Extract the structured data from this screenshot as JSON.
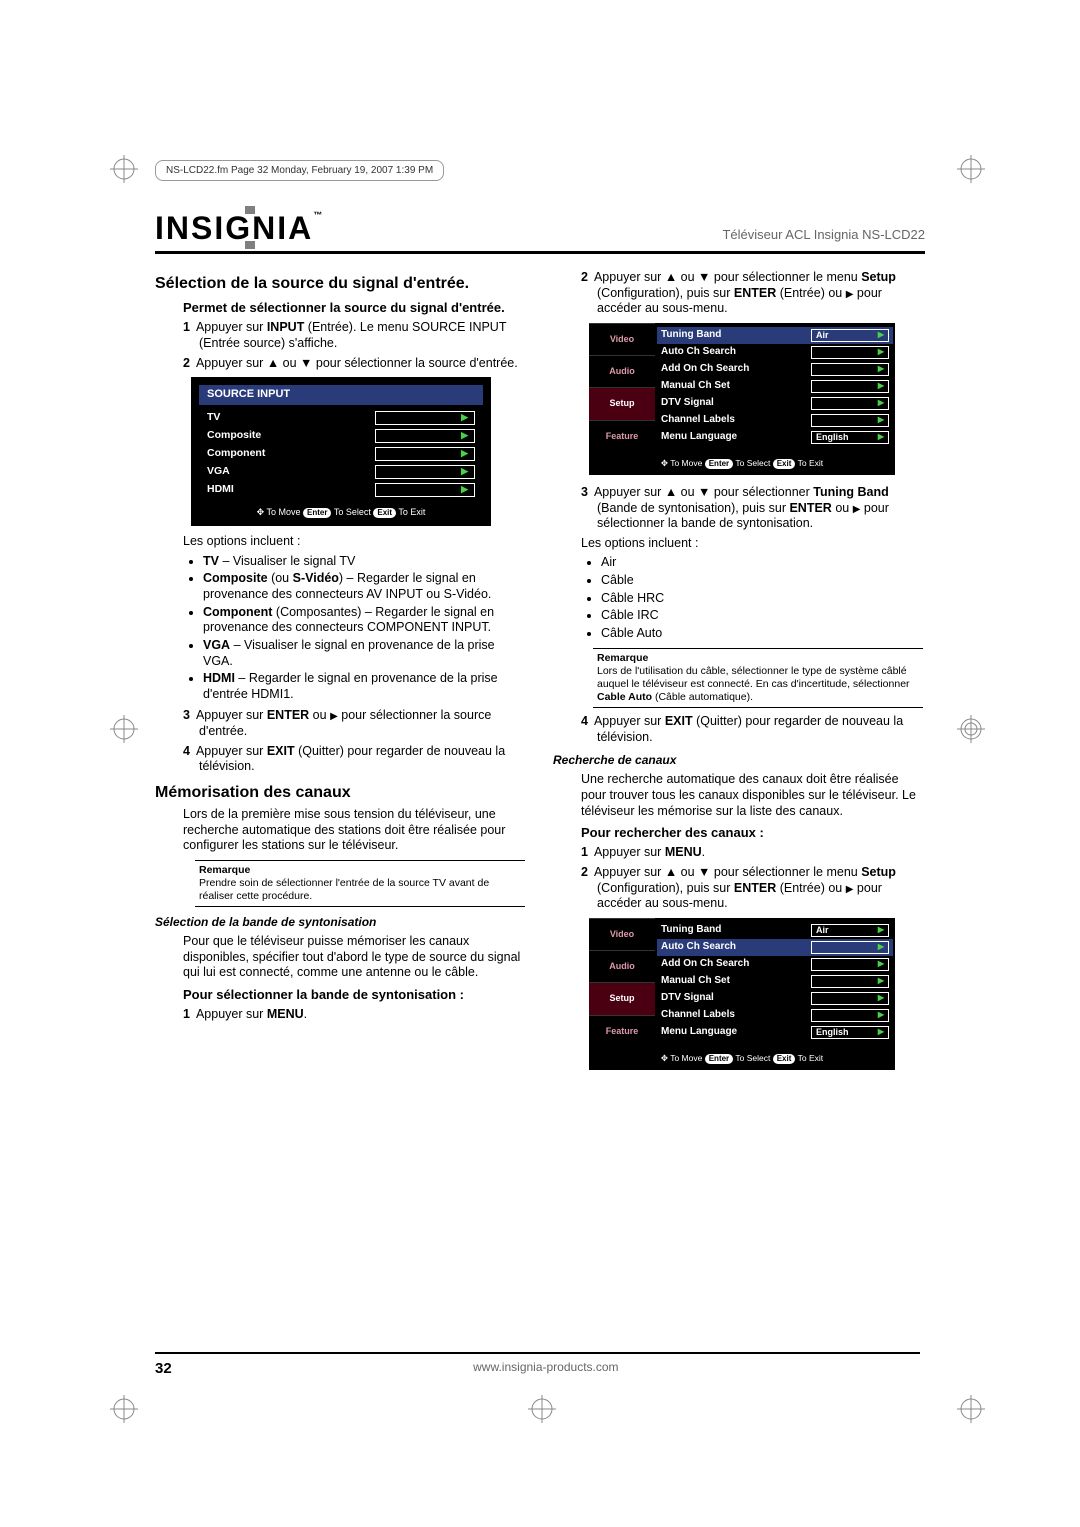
{
  "header_stamp": "NS-LCD22.fm  Page 32  Monday, February 19, 2007  1:39 PM",
  "brand": "INSIGNIA",
  "trademark": "™",
  "model": "Téléviseur ACL Insignia NS-LCD22",
  "col1": {
    "h_source": "Sélection de la source du signal d'entrée.",
    "h_source_sub": "Permet de sélectionner la source du signal d'entrée.",
    "step1": "Appuyer sur INPUT (Entrée). Le menu SOURCE INPUT (Entrée source) s'affiche.",
    "step2": "Appuyer sur ▲ ou ▼ pour sélectionner la source d'entrée.",
    "osd_src": {
      "title": "SOURCE INPUT",
      "items": [
        "TV",
        "Composite",
        "Component",
        "VGA",
        "HDMI"
      ],
      "hint_move": "To Move",
      "hint_enter": "Enter",
      "hint_select": "To Select",
      "hint_exit": "Exit",
      "hint_toexit": "To Exit"
    },
    "opts_h": "Les options incluent :",
    "opt_tv": "TV – Visualiser le signal TV",
    "opt_comp": "Composite (ou S-Vidéo) – Regarder le signal en provenance des connecteurs AV INPUT ou S-Vidéo.",
    "opt_component": "Component (Composantes) – Regarder le signal en provenance des connecteurs COMPONENT INPUT.",
    "opt_vga": "VGA – Visualiser le signal en provenance de la prise VGA.",
    "opt_hdmi": "HDMI – Regarder le signal en provenance de la prise d'entrée HDMI1.",
    "step3": "Appuyer sur ENTER ou ▶ pour sélectionner la source d'entrée.",
    "step4": "Appuyer sur EXIT (Quitter) pour regarder de nouveau la télévision.",
    "h_mem": "Mémorisation des canaux",
    "mem_p": "Lors de la première mise sous tension du téléviseur, une recherche automatique des stations doit être réalisée pour configurer les stations sur le téléviseur.",
    "note1_t": "Remarque",
    "note1": "Prendre soin de sélectionner l'entrée de la source TV avant de réaliser cette procédure.",
    "h_band": "Sélection de la bande de syntonisation",
    "band_p": "Pour que le téléviseur puisse mémoriser les canaux disponibles, spécifier tout d'abord le type de source du signal qui lui est connecté, comme une antenne ou le câble.",
    "band_h2": "Pour sélectionner la bande de syntonisation :",
    "band_s1": "Appuyer sur MENU."
  },
  "col2": {
    "step2": "Appuyer sur ▲ ou ▼ pour sélectionner le menu Setup (Configuration), puis sur ENTER (Entrée) ou ▶ pour accéder au sous-menu.",
    "setup_menu": {
      "tabs": [
        "Video",
        "Audio",
        "Setup",
        "Feature"
      ],
      "rows": [
        {
          "label": "Tuning Band",
          "val": "Air"
        },
        {
          "label": "Auto Ch Search",
          "val": ""
        },
        {
          "label": "Add On Ch Search",
          "val": ""
        },
        {
          "label": "Manual Ch Set",
          "val": ""
        },
        {
          "label": "DTV Signal",
          "val": ""
        },
        {
          "label": "Channel Labels",
          "val": ""
        },
        {
          "label": "Menu Language",
          "val": "English"
        }
      ],
      "hint_move": "To Move",
      "hint_enter": "Enter",
      "hint_select": "To Select",
      "hint_exit": "Exit",
      "hint_toexit": "To Exit",
      "highlight": 0
    },
    "step3": "Appuyer sur ▲ ou ▼ pour sélectionner Tuning Band (Bande de syntonisation), puis sur ENTER ou ▶ pour sélectionner la bande de syntonisation.",
    "opts_h": "Les options incluent :",
    "opts": [
      "Air",
      "Câble",
      "Câble HRC",
      "Câble IRC",
      "Câble Auto"
    ],
    "note2_t": "Remarque",
    "note2": "Lors de l'utilisation du câble, sélectionner le type de système câblé auquel le téléviseur est connecté. En cas d'incertitude, sélectionner Cable Auto (Câble automatique).",
    "step4": "Appuyer sur EXIT (Quitter) pour regarder de nouveau la télévision.",
    "h_search": "Recherche de canaux",
    "search_p": "Une recherche automatique des canaux doit être réalisée pour trouver tous les canaux disponibles sur le téléviseur. Le téléviseur les mémorise sur la liste des canaux.",
    "search_h2": "Pour rechercher des canaux :",
    "search_s1": "Appuyer sur MENU.",
    "search_s2": "Appuyer sur ▲ ou ▼ pour sélectionner le menu Setup (Configuration), puis sur ENTER (Entrée) ou ▶ pour accéder au sous-menu.",
    "setup_menu2": {
      "tabs": [
        "Video",
        "Audio",
        "Setup",
        "Feature"
      ],
      "rows": [
        {
          "label": "Tuning Band",
          "val": "Air"
        },
        {
          "label": "Auto Ch Search",
          "val": ""
        },
        {
          "label": "Add On Ch Search",
          "val": ""
        },
        {
          "label": "Manual Ch Set",
          "val": ""
        },
        {
          "label": "DTV Signal",
          "val": ""
        },
        {
          "label": "Channel Labels",
          "val": ""
        },
        {
          "label": "Menu Language",
          "val": "English"
        }
      ],
      "hint_move": "To Move",
      "hint_enter": "Enter",
      "hint_select": "To Select",
      "hint_exit": "Exit",
      "hint_toexit": "To Exit",
      "highlight": 1
    }
  },
  "footer": {
    "page": "32",
    "url": "www.insignia-products.com"
  }
}
